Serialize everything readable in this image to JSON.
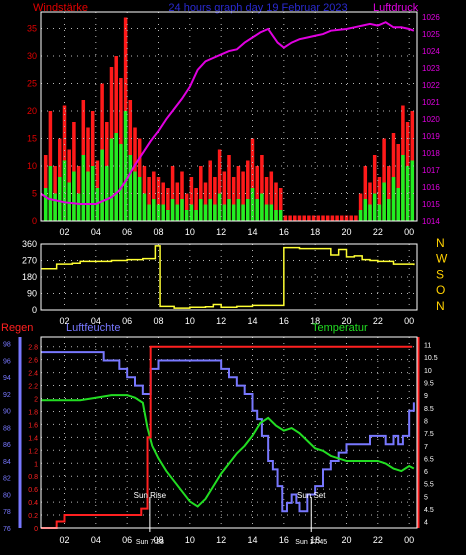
{
  "colors": {
    "background": "#000000",
    "wind_text": "#e00000",
    "title_text": "#2a2ad0",
    "pressure": "#e000e0",
    "gust": "#ff1a1a",
    "wind": "#22ee22",
    "wind_direction": "#ffff33",
    "compass": "#ffd000",
    "rain": "#ff2020",
    "humidity": "#7878ff",
    "temperature": "#22dd22",
    "sun_marker": "#ffffff",
    "grid": "#b8b8b8"
  },
  "chart_data": [
    {
      "type": "bar",
      "title": "24 hours graph day  19 Februar 2023",
      "left_axis_label": "Windstärke",
      "right_axis_label": "Luftdruck",
      "x_ticks": [
        "02",
        "04",
        "06",
        "08",
        "10",
        "12",
        "14",
        "16",
        "18",
        "20",
        "22",
        "00"
      ],
      "x_range_hours": [
        0.5,
        24.5
      ],
      "left_ticks": [
        0,
        5,
        10,
        15,
        20,
        25,
        30,
        35
      ],
      "left_range": [
        0,
        38
      ],
      "right_ticks": [
        1014,
        1015,
        1016,
        1017,
        1018,
        1019,
        1020,
        1021,
        1022,
        1023,
        1024,
        1025,
        1026
      ],
      "right_range": [
        1014,
        1026.3
      ],
      "grid": true,
      "series": [
        {
          "name": "Luftdruck",
          "type": "line",
          "axis": "right",
          "x": [
            0.5,
            1,
            2,
            3,
            4,
            5,
            5.5,
            6,
            6.5,
            7,
            7.5,
            8,
            8.5,
            9,
            9.5,
            10,
            10.5,
            11,
            11.5,
            12,
            12.5,
            13,
            13.5,
            14,
            14.5,
            15,
            15.3,
            15.6,
            16,
            16.5,
            17,
            17.5,
            18,
            18.5,
            19,
            20,
            20.5,
            21,
            21.5,
            22,
            22.5,
            23,
            23.5,
            24,
            24.3
          ],
          "y": [
            1015.6,
            1015.3,
            1015.1,
            1015.0,
            1015.0,
            1015.4,
            1015.8,
            1016.5,
            1017.3,
            1018.0,
            1018.7,
            1019.3,
            1020.0,
            1020.6,
            1021.2,
            1021.9,
            1022.9,
            1023.4,
            1023.6,
            1023.8,
            1024.0,
            1024.1,
            1024.5,
            1024.8,
            1025.1,
            1025.3,
            1024.9,
            1024.5,
            1024.2,
            1024.5,
            1024.7,
            1024.8,
            1024.9,
            1025.0,
            1025.2,
            1025.3,
            1025.4,
            1025.5,
            1025.6,
            1025.5,
            1025.7,
            1025.4,
            1025.4,
            1025.3,
            1025.2
          ]
        },
        {
          "name": "gust",
          "type": "bar",
          "axis": "left",
          "hours": [
            0.8,
            1.1,
            1.4,
            1.7,
            2.0,
            2.3,
            2.6,
            2.9,
            3.2,
            3.5,
            3.8,
            4.1,
            4.4,
            4.7,
            5.0,
            5.3,
            5.6,
            5.9,
            6.2,
            6.5,
            6.8,
            7.1,
            7.4,
            7.7,
            8.0,
            8.3,
            8.6,
            8.9,
            9.2,
            9.5,
            9.8,
            10.1,
            10.4,
            10.7,
            11.0,
            11.3,
            11.6,
            11.9,
            12.2,
            12.5,
            12.8,
            13.1,
            13.4,
            13.7,
            14.0,
            14.3,
            14.6,
            14.9,
            15.2,
            15.5,
            15.8,
            16.1,
            16.4,
            16.7,
            17.0,
            17.3,
            17.6,
            17.9,
            18.2,
            18.5,
            18.8,
            19.1,
            19.4,
            19.7,
            20.0,
            20.3,
            20.6,
            20.9,
            21.2,
            21.5,
            21.8,
            22.1,
            22.4,
            22.7,
            23.0,
            23.3,
            23.6,
            23.9,
            24.2
          ],
          "values": [
            12,
            20,
            10,
            15,
            21,
            13,
            18,
            10,
            22,
            17,
            20,
            11,
            25,
            18,
            28,
            30,
            26,
            37,
            22,
            17,
            15,
            10,
            8,
            9,
            8,
            7,
            6,
            10,
            7,
            9,
            5,
            8,
            6,
            10,
            7,
            11,
            8,
            13,
            9,
            12,
            8,
            10,
            9,
            11,
            15,
            10,
            12,
            8,
            9,
            7,
            6,
            1,
            1,
            1,
            1,
            1,
            1,
            1,
            1,
            1,
            1,
            1,
            1,
            1,
            1,
            1,
            1,
            5,
            10,
            7,
            12,
            8,
            15,
            10,
            16,
            14,
            21,
            18,
            20
          ]
        },
        {
          "name": "wind",
          "type": "bar",
          "axis": "left",
          "hours": [
            0.8,
            1.1,
            1.4,
            1.7,
            2.0,
            2.3,
            2.6,
            2.9,
            3.2,
            3.5,
            3.8,
            4.1,
            4.4,
            4.7,
            5.0,
            5.3,
            5.6,
            5.9,
            6.2,
            6.5,
            6.8,
            7.1,
            7.4,
            7.7,
            8.0,
            8.3,
            8.6,
            8.9,
            9.2,
            9.5,
            9.8,
            10.1,
            10.4,
            10.7,
            11.0,
            11.3,
            11.6,
            11.9,
            12.2,
            12.5,
            12.8,
            13.1,
            13.4,
            13.7,
            14.0,
            14.3,
            14.6,
            14.9,
            15.2,
            15.5,
            15.8,
            16.1,
            16.4,
            16.7,
            17.0,
            17.3,
            17.6,
            17.9,
            18.2,
            18.5,
            18.8,
            19.1,
            19.4,
            19.7,
            20.0,
            20.3,
            20.6,
            20.9,
            21.2,
            21.5,
            21.8,
            22.1,
            22.4,
            22.7,
            23.0,
            23.3,
            23.6,
            23.9,
            24.2
          ],
          "values": [
            6,
            10,
            5,
            8,
            11,
            7,
            9,
            5,
            12,
            9,
            10,
            6,
            13,
            10,
            15,
            16,
            14,
            20,
            12,
            9,
            8,
            5,
            3,
            4,
            3,
            3,
            2,
            4,
            3,
            4,
            2,
            3,
            2,
            4,
            3,
            4,
            3,
            5,
            3,
            4,
            3,
            4,
            3,
            4,
            6,
            4,
            5,
            3,
            3,
            2,
            2,
            0,
            0,
            0,
            0,
            0,
            0,
            0,
            0,
            0,
            0,
            0,
            0,
            0,
            0,
            0,
            0,
            2,
            4,
            3,
            5,
            3,
            7,
            4,
            8,
            6,
            12,
            10,
            11
          ]
        }
      ]
    },
    {
      "type": "line",
      "x_ticks": [
        "02",
        "04",
        "06",
        "08",
        "10",
        "12",
        "14",
        "16",
        "18",
        "20",
        "22",
        "00"
      ],
      "left_ticks": [
        0,
        90,
        180,
        270,
        360
      ],
      "left_range": [
        0,
        360
      ],
      "right_labels": [
        "N",
        "W",
        "S",
        "O",
        "N"
      ],
      "grid": true,
      "series": [
        {
          "name": "wind_direction",
          "type": "step",
          "x": [
            0.5,
            1.5,
            2.5,
            3.0,
            4.0,
            5.0,
            6.0,
            7.0,
            7.8,
            8.0,
            8.1,
            8.4,
            9,
            10,
            11,
            11.5,
            12,
            13,
            14,
            15,
            16.0,
            16.1,
            17,
            18,
            19,
            19.5,
            20,
            20.5,
            21,
            21.5,
            22,
            23,
            24.3
          ],
          "y": [
            225,
            250,
            255,
            265,
            265,
            270,
            275,
            280,
            350,
            350,
            20,
            20,
            10,
            15,
            18,
            30,
            15,
            20,
            25,
            25,
            340,
            340,
            335,
            335,
            300,
            330,
            290,
            295,
            275,
            270,
            265,
            250,
            245
          ]
        }
      ]
    },
    {
      "type": "line",
      "left_label_rain": "Regen",
      "left_label_humidity": "Luftfeuchte",
      "right_label": "Temperatur",
      "x_ticks": [
        "02",
        "04",
        "06",
        "08",
        "10",
        "12",
        "14",
        "16",
        "18",
        "20",
        "22",
        "00"
      ],
      "rain_ticks": [
        "0",
        "0.2",
        "0.4",
        "0.6",
        "0.8",
        "1",
        "1.2",
        "1.4",
        "1.6",
        "1.8",
        "2",
        "2.2",
        "2.4",
        "2.6",
        "2.8"
      ],
      "rain_range": [
        0,
        2.95
      ],
      "humidity_ticks": [
        76,
        78,
        80,
        82,
        84,
        86,
        88,
        90,
        92,
        94,
        96,
        98
      ],
      "humidity_range": [
        76,
        98.8
      ],
      "temperature_ticks": [
        4,
        4.5,
        5,
        5.5,
        6,
        6.5,
        7,
        7.5,
        8,
        8.5,
        9,
        9.5,
        10,
        10.5,
        11
      ],
      "temperature_range": [
        3.75,
        11.3
      ],
      "grid": true,
      "series": [
        {
          "name": "Regen",
          "type": "step",
          "x": [
            0.5,
            1.5,
            2.0,
            6.5,
            6.9,
            7.3,
            7.5,
            24.2
          ],
          "y": [
            0,
            0.1,
            0.2,
            0.2,
            0.3,
            1.4,
            2.8,
            2.8
          ]
        },
        {
          "name": "Luftfeuchte",
          "type": "line",
          "x": [
            0.5,
            1,
            2,
            3,
            4,
            4.5,
            5,
            5.5,
            6,
            6.5,
            7.0,
            7.5,
            8.0,
            8.5,
            9,
            9.5,
            10,
            10.5,
            11,
            11.5,
            12,
            12.5,
            13,
            13.5,
            14.0,
            14.3,
            14.6,
            15.0,
            15.3,
            15.6,
            15.9,
            16.2,
            16.5,
            16.8,
            17.0,
            17.5,
            18.0,
            18.5,
            19,
            19.5,
            20,
            20.5,
            21.0,
            21.5,
            22.0,
            22.5,
            23.0,
            23.3,
            23.6,
            24.0,
            24.3
          ],
          "y": [
            97,
            97,
            97,
            97,
            97,
            96,
            96,
            95,
            94,
            93,
            92,
            95,
            96,
            96,
            96,
            96,
            96,
            96,
            96,
            96,
            95,
            94,
            93,
            92,
            90,
            89,
            87,
            84,
            83,
            81,
            78,
            79,
            80,
            79,
            78,
            80,
            81,
            83,
            84,
            85,
            86,
            86,
            86,
            87,
            87,
            86,
            87,
            86,
            87,
            90,
            91
          ]
        },
        {
          "name": "Temperatur",
          "type": "line",
          "x": [
            0.5,
            1,
            2,
            3,
            4,
            5,
            5.5,
            6,
            6.5,
            7.0,
            7.3,
            7.6,
            8.0,
            8.5,
            9,
            9.5,
            10,
            10.5,
            11,
            11.5,
            12,
            12.5,
            13,
            13.5,
            14.0,
            14.5,
            15.0,
            15.5,
            16.0,
            16.5,
            17.0,
            17.5,
            18,
            18.5,
            19,
            19.5,
            20,
            20.5,
            21,
            21.5,
            22,
            22.5,
            23,
            23.5,
            24,
            24.3
          ],
          "y": [
            8.8,
            8.8,
            8.8,
            8.8,
            8.9,
            9.0,
            9.0,
            9.0,
            8.9,
            8.7,
            7.7,
            7.0,
            6.5,
            6.0,
            5.6,
            5.2,
            4.8,
            4.6,
            4.9,
            5.4,
            5.9,
            6.3,
            6.7,
            7.0,
            7.4,
            7.9,
            8.1,
            7.8,
            7.6,
            7.7,
            7.5,
            7.2,
            6.9,
            6.8,
            6.6,
            6.5,
            6.4,
            6.4,
            6.4,
            6.4,
            6.4,
            6.3,
            6.1,
            6.0,
            6.2,
            6.1
          ]
        }
      ],
      "annotations": [
        {
          "text": "Sun Rise",
          "hour": 7.45
        },
        {
          "text": "Sun Set",
          "hour": 17.75
        }
      ],
      "bottom_time_labels": [
        {
          "text": "Sun 7:28",
          "hour": 7.45
        },
        {
          "text": "Sun 17:45",
          "hour": 17.75
        }
      ]
    }
  ]
}
